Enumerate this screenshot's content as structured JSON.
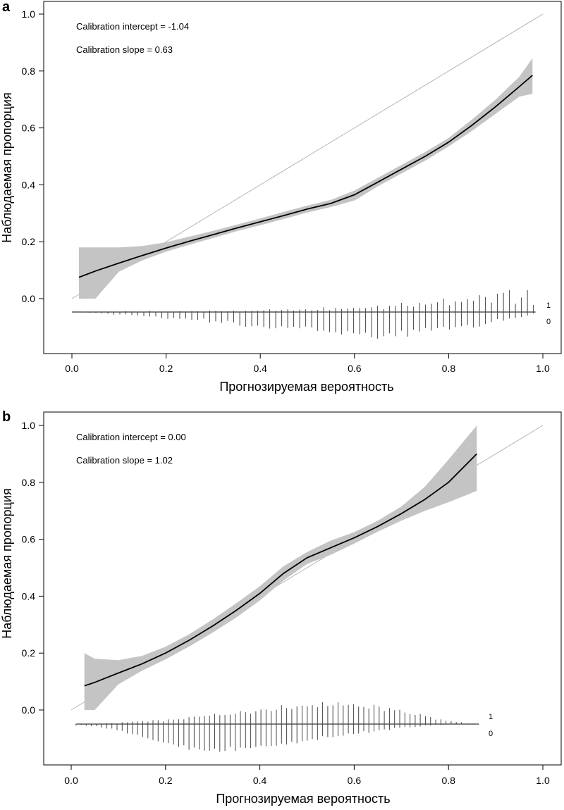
{
  "chart_data": [
    {
      "type": "line",
      "panel": "a",
      "xlabel": "Прогнозируемая вероятность",
      "ylabel": "Наблюдаемая пропорция",
      "xlim": [
        0.0,
        1.0
      ],
      "ylim": [
        -0.15,
        1.0
      ],
      "x_ticks": [
        "0.0",
        "0.2",
        "0.4",
        "0.6",
        "0.8",
        "1.0"
      ],
      "y_ticks": [
        "0.0",
        "0.2",
        "0.4",
        "0.6",
        "0.8",
        "1.0"
      ],
      "annotations": [
        "Calibration intercept = -1.04",
        "Calibration slope = 0.63"
      ],
      "rug_labels": [
        "1",
        "0"
      ],
      "grid": false,
      "reference_line": {
        "x": [
          0.0,
          1.0
        ],
        "y": [
          0.0,
          1.0
        ],
        "color": "#b5b5b5"
      },
      "curve": {
        "x": [
          0.015,
          0.05,
          0.1,
          0.15,
          0.2,
          0.25,
          0.3,
          0.35,
          0.4,
          0.45,
          0.5,
          0.55,
          0.6,
          0.65,
          0.7,
          0.75,
          0.8,
          0.85,
          0.9,
          0.95,
          0.978
        ],
        "y": [
          0.075,
          0.097,
          0.125,
          0.152,
          0.178,
          0.202,
          0.225,
          0.248,
          0.27,
          0.292,
          0.315,
          0.335,
          0.365,
          0.41,
          0.455,
          0.5,
          0.55,
          0.61,
          0.675,
          0.745,
          0.785
        ],
        "lower": [
          0.0,
          0.0,
          0.095,
          0.135,
          0.165,
          0.19,
          0.213,
          0.237,
          0.258,
          0.28,
          0.303,
          0.322,
          0.345,
          0.395,
          0.44,
          0.485,
          0.535,
          0.59,
          0.65,
          0.71,
          0.72
        ],
        "upper": [
          0.18,
          0.18,
          0.18,
          0.185,
          0.198,
          0.218,
          0.238,
          0.26,
          0.282,
          0.305,
          0.327,
          0.347,
          0.38,
          0.425,
          0.47,
          0.515,
          0.565,
          0.63,
          0.7,
          0.78,
          0.845
        ],
        "color": "#000000",
        "band_color": "#c4c4c4"
      },
      "rug": {
        "x_start": 0.0,
        "x_end": 0.98,
        "bins": 78,
        "events_1": [
          0.0,
          0.002,
          0.001,
          0.001,
          0.001,
          0.001,
          0.001,
          0.001,
          0.001,
          0.003,
          0.002,
          0.001,
          0.001,
          0.004,
          0.001,
          0.002,
          0.002,
          0.002,
          0.003,
          0.002,
          0.003,
          0.003,
          0.002,
          0.005,
          0.004,
          0.003,
          0.003,
          0.004,
          0.002,
          0.004,
          0.004,
          0.005,
          0.006,
          0.009,
          0.004,
          0.007,
          0.009,
          0.005,
          0.008,
          0.009,
          0.006,
          0.007,
          0.016,
          0.006,
          0.014,
          0.01,
          0.012,
          0.014,
          0.013,
          0.013,
          0.016,
          0.021,
          0.01,
          0.021,
          0.021,
          0.031,
          0.021,
          0.018,
          0.031,
          0.025,
          0.028,
          0.033,
          0.045,
          0.023,
          0.036,
          0.034,
          0.044,
          0.038,
          0.057,
          0.051,
          0.032,
          0.062,
          0.065,
          0.074,
          0.028,
          0.049,
          0.074,
          0.024
        ],
        "events_0": [
          0.0,
          0.001,
          0.002,
          0.003,
          0.003,
          0.004,
          0.006,
          0.009,
          0.008,
          0.008,
          0.01,
          0.011,
          0.014,
          0.015,
          0.015,
          0.021,
          0.023,
          0.02,
          0.023,
          0.022,
          0.027,
          0.027,
          0.022,
          0.036,
          0.032,
          0.036,
          0.03,
          0.035,
          0.046,
          0.05,
          0.048,
          0.046,
          0.05,
          0.056,
          0.055,
          0.048,
          0.054,
          0.05,
          0.055,
          0.049,
          0.052,
          0.064,
          0.063,
          0.068,
          0.068,
          0.076,
          0.065,
          0.072,
          0.075,
          0.07,
          0.085,
          0.09,
          0.082,
          0.072,
          0.082,
          0.063,
          0.083,
          0.06,
          0.066,
          0.054,
          0.063,
          0.054,
          0.05,
          0.059,
          0.051,
          0.048,
          0.044,
          0.052,
          0.049,
          0.041,
          0.034,
          0.024,
          0.029,
          0.022,
          0.02,
          0.017,
          0.012,
          0.005
        ]
      }
    },
    {
      "type": "line",
      "panel": "b",
      "xlabel": "Прогнозируемая вероятность",
      "ylabel": "Наблюдаемая пропорция",
      "xlim": [
        0.0,
        1.0
      ],
      "ylim": [
        -0.15,
        1.0
      ],
      "x_ticks": [
        "0.0",
        "0.2",
        "0.4",
        "0.6",
        "0.8",
        "1.0"
      ],
      "y_ticks": [
        "0.0",
        "0.2",
        "0.4",
        "0.6",
        "0.8",
        "1.0"
      ],
      "annotations": [
        "Calibration intercept = 0.00",
        "Calibration slope = 1.02"
      ],
      "rug_labels": [
        "1",
        "0"
      ],
      "grid": false,
      "reference_line": {
        "x": [
          0.0,
          1.0
        ],
        "y": [
          0.0,
          1.0
        ],
        "color": "#b5b5b5"
      },
      "curve": {
        "x": [
          0.028,
          0.05,
          0.1,
          0.15,
          0.2,
          0.25,
          0.3,
          0.35,
          0.4,
          0.45,
          0.5,
          0.55,
          0.6,
          0.65,
          0.7,
          0.75,
          0.8,
          0.86
        ],
        "y": [
          0.085,
          0.097,
          0.13,
          0.162,
          0.2,
          0.245,
          0.295,
          0.35,
          0.41,
          0.48,
          0.535,
          0.57,
          0.605,
          0.645,
          0.69,
          0.74,
          0.8,
          0.9
        ],
        "lower": [
          0.0,
          0.0,
          0.09,
          0.138,
          0.178,
          0.223,
          0.272,
          0.325,
          0.385,
          0.455,
          0.513,
          0.545,
          0.585,
          0.627,
          0.665,
          0.7,
          0.73,
          0.77
        ],
        "upper": [
          0.2,
          0.18,
          0.175,
          0.19,
          0.222,
          0.266,
          0.318,
          0.375,
          0.435,
          0.505,
          0.555,
          0.595,
          0.625,
          0.665,
          0.715,
          0.785,
          0.88,
          1.0
        ],
        "color": "#000000",
        "band_color": "#c4c4c4"
      },
      "rug": {
        "x_start": 0.01,
        "x_end": 0.86,
        "bins": 79,
        "events_1": [
          0.0,
          0.0,
          0.0,
          0.001,
          0.001,
          0.002,
          0.003,
          0.003,
          0.002,
          0.006,
          0.006,
          0.008,
          0.009,
          0.01,
          0.008,
          0.013,
          0.013,
          0.009,
          0.016,
          0.015,
          0.016,
          0.016,
          0.023,
          0.025,
          0.025,
          0.028,
          0.028,
          0.035,
          0.03,
          0.031,
          0.032,
          0.035,
          0.044,
          0.04,
          0.035,
          0.043,
          0.049,
          0.049,
          0.044,
          0.048,
          0.064,
          0.054,
          0.051,
          0.06,
          0.062,
          0.06,
          0.064,
          0.057,
          0.074,
          0.061,
          0.063,
          0.073,
          0.063,
          0.065,
          0.067,
          0.059,
          0.058,
          0.052,
          0.065,
          0.059,
          0.044,
          0.054,
          0.047,
          0.048,
          0.039,
          0.034,
          0.031,
          0.034,
          0.027,
          0.024,
          0.015,
          0.016,
          0.011,
          0.01,
          0.007,
          0.006,
          0.002,
          0.001,
          0.001
        ],
        "events_0": [
          0.005,
          0.003,
          0.006,
          0.007,
          0.007,
          0.012,
          0.015,
          0.015,
          0.021,
          0.023,
          0.032,
          0.034,
          0.036,
          0.043,
          0.048,
          0.054,
          0.058,
          0.062,
          0.064,
          0.069,
          0.077,
          0.072,
          0.087,
          0.079,
          0.086,
          0.09,
          0.09,
          0.083,
          0.093,
          0.091,
          0.077,
          0.091,
          0.079,
          0.081,
          0.081,
          0.077,
          0.073,
          0.075,
          0.074,
          0.073,
          0.066,
          0.069,
          0.06,
          0.065,
          0.058,
          0.056,
          0.051,
          0.054,
          0.041,
          0.044,
          0.044,
          0.041,
          0.039,
          0.032,
          0.033,
          0.032,
          0.024,
          0.03,
          0.025,
          0.021,
          0.018,
          0.02,
          0.013,
          0.012,
          0.009,
          0.011,
          0.01,
          0.008,
          0.004,
          0.005,
          0.002,
          0.003,
          0.002,
          0.001,
          0.0,
          0.001,
          0.0,
          0.0,
          0.0
        ]
      }
    }
  ],
  "panel_letters": [
    "a",
    "b"
  ]
}
